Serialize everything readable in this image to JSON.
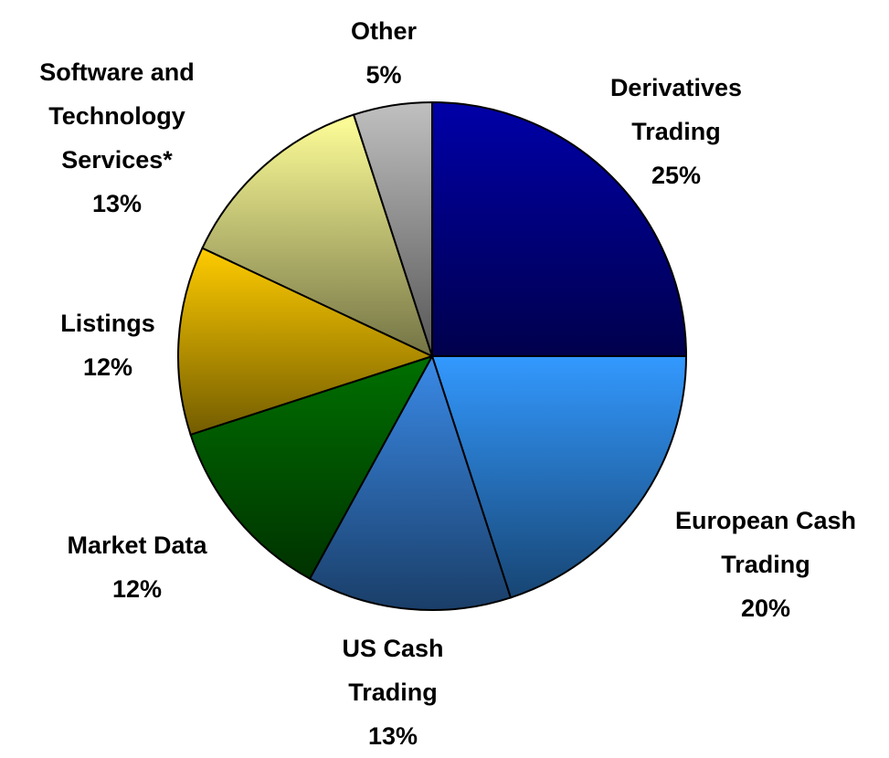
{
  "chart_data": {
    "type": "pie",
    "categories": [
      "Derivatives Trading",
      "European Cash Trading",
      "US Cash Trading",
      "Market Data",
      "Listings",
      "Software and Technology Services*",
      "Other"
    ],
    "values": [
      25,
      20,
      13,
      12,
      12,
      13,
      5
    ],
    "value_labels": [
      "25%",
      "20%",
      "13%",
      "12%",
      "12%",
      "13%",
      "5%"
    ],
    "colors": [
      "#0000a8",
      "#3399ff",
      "#3a8ae8",
      "#007000",
      "#ffcc00",
      "#ffff99",
      "#c0c0c0"
    ]
  }
}
